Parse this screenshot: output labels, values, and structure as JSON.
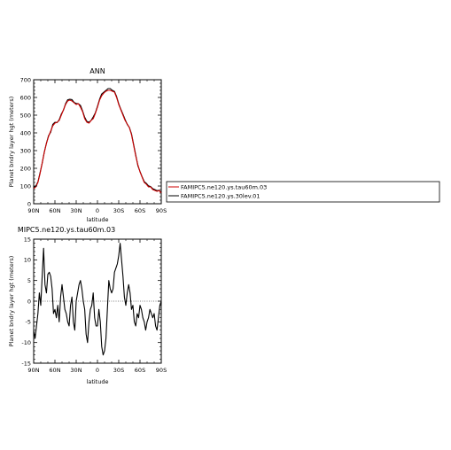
{
  "chart_data": [
    {
      "type": "line",
      "title": "ANN",
      "xlabel": "latitude",
      "ylabel": "Planet bndry layer hgt (meters)",
      "xlim": [
        -90,
        90
      ],
      "ylim": [
        0,
        700
      ],
      "x_ticks": [
        -90,
        -60,
        -30,
        0,
        30,
        60,
        90
      ],
      "x_tick_labels": [
        "90N",
        "60N",
        "30N",
        "0",
        "30S",
        "60S",
        "90S"
      ],
      "y_ticks": [
        0,
        100,
        200,
        300,
        400,
        500,
        600,
        700
      ],
      "y_tick_labels": [
        "0",
        "100",
        "200",
        "300",
        "400",
        "500",
        "600",
        "700"
      ],
      "series": [
        {
          "name": "FAMIPC5.ne120.ys.tau60m.03",
          "color": "#cc0000",
          "x": [
            -90,
            -87,
            -84,
            -81,
            -78,
            -75,
            -72,
            -69,
            -66,
            -63,
            -60,
            -57,
            -54,
            -51,
            -48,
            -45,
            -42,
            -39,
            -36,
            -33,
            -30,
            -27,
            -24,
            -21,
            -18,
            -15,
            -12,
            -9,
            -6,
            -3,
            0,
            3,
            6,
            9,
            12,
            15,
            18,
            21,
            24,
            27,
            30,
            33,
            36,
            39,
            42,
            45,
            48,
            51,
            54,
            57,
            60,
            63,
            66,
            69,
            72,
            75,
            78,
            81,
            84,
            87,
            90
          ],
          "y": [
            85,
            95,
            120,
            170,
            230,
            290,
            340,
            380,
            410,
            440,
            455,
            460,
            470,
            500,
            530,
            560,
            580,
            585,
            580,
            570,
            560,
            565,
            545,
            520,
            480,
            460,
            455,
            470,
            480,
            510,
            545,
            585,
            610,
            625,
            635,
            640,
            640,
            635,
            630,
            600,
            560,
            530,
            500,
            470,
            450,
            430,
            390,
            330,
            270,
            220,
            180,
            150,
            120,
            110,
            95,
            95,
            80,
            75,
            70,
            75,
            60
          ]
        },
        {
          "name": "FAMIPC5.ne120.ys.30lev.01",
          "color": "#000000",
          "x": [
            -90,
            -87,
            -84,
            -81,
            -78,
            -75,
            -72,
            -69,
            -66,
            -63,
            -60,
            -57,
            -54,
            -51,
            -48,
            -45,
            -42,
            -39,
            -36,
            -33,
            -30,
            -27,
            -24,
            -21,
            -18,
            -15,
            -12,
            -9,
            -6,
            -3,
            0,
            3,
            6,
            9,
            12,
            15,
            18,
            21,
            24,
            27,
            30,
            33,
            36,
            39,
            42,
            45,
            48,
            51,
            54,
            57,
            60,
            63,
            66,
            69,
            72,
            75,
            78,
            81,
            84,
            87,
            90
          ],
          "y": [
            92,
            100,
            123,
            175,
            228,
            292,
            342,
            384,
            404,
            448,
            460,
            458,
            474,
            506,
            528,
            565,
            587,
            590,
            588,
            572,
            566,
            565,
            555,
            524,
            488,
            465,
            460,
            470,
            490,
            513,
            550,
            590,
            620,
            630,
            640,
            650,
            650,
            640,
            634,
            605,
            564,
            533,
            505,
            475,
            448,
            431,
            395,
            335,
            275,
            215,
            182,
            152,
            125,
            115,
            101,
            97,
            85,
            80,
            74,
            76,
            63
          ]
        }
      ],
      "legend": "right"
    },
    {
      "type": "line",
      "title": "MIPC5.ne120.ys.tau60m.03",
      "xlabel": "latitude",
      "ylabel": "Planet bndry layer hgt (meters)",
      "xlim": [
        -90,
        90
      ],
      "ylim": [
        -15,
        15
      ],
      "x_ticks": [
        -90,
        -60,
        -30,
        0,
        30,
        60,
        90
      ],
      "x_tick_labels": [
        "90N",
        "60N",
        "30N",
        "0",
        "30S",
        "60S",
        "90S"
      ],
      "y_ticks": [
        -15,
        -10,
        -5,
        0,
        5,
        10,
        15
      ],
      "y_tick_labels": [
        "-15",
        "-10",
        "-5",
        "0",
        "5",
        "10",
        "15"
      ],
      "series": [
        {
          "color": "#000000",
          "x": [
            -90,
            -88,
            -86,
            -84,
            -82,
            -80,
            -78,
            -76,
            -74,
            -72,
            -70,
            -68,
            -66,
            -64,
            -62,
            -60,
            -58,
            -56,
            -54,
            -52,
            -50,
            -48,
            -46,
            -44,
            -42,
            -40,
            -38,
            -36,
            -34,
            -32,
            -30,
            -28,
            -26,
            -24,
            -22,
            -20,
            -18,
            -16,
            -14,
            -12,
            -10,
            -8,
            -6,
            -4,
            -2,
            0,
            2,
            4,
            6,
            8,
            10,
            12,
            14,
            16,
            18,
            20,
            22,
            24,
            26,
            28,
            30,
            32,
            34,
            36,
            38,
            40,
            42,
            44,
            46,
            48,
            50,
            52,
            54,
            56,
            58,
            60,
            62,
            64,
            66,
            68,
            70,
            72,
            74,
            76,
            78,
            80,
            82,
            84,
            86,
            88,
            90
          ],
          "y": [
            -7,
            -9,
            -6,
            -3,
            2,
            -1,
            6,
            12.8,
            4,
            2,
            6.5,
            7,
            6,
            3,
            -3,
            -2,
            -4,
            -1,
            -5,
            1,
            4,
            1,
            -2,
            -3,
            -5,
            -6,
            -1,
            1,
            -5,
            -7,
            0,
            2,
            4,
            5,
            3,
            0,
            -2,
            -8,
            -10,
            -5,
            -2,
            -1,
            2,
            -4,
            -6,
            -6,
            -2,
            -5,
            -11,
            -13,
            -12,
            -9,
            -2,
            5,
            3,
            2,
            3,
            7,
            8,
            9,
            11,
            14,
            10,
            6,
            1,
            -1,
            2,
            4,
            2,
            -2,
            -1,
            -5,
            -6,
            -3,
            -4,
            -1,
            -2,
            -4,
            -5,
            -7,
            -5,
            -4,
            -2,
            -3,
            -4,
            -3,
            -6,
            -7,
            -4,
            -1,
            0
          ]
        }
      ]
    }
  ]
}
